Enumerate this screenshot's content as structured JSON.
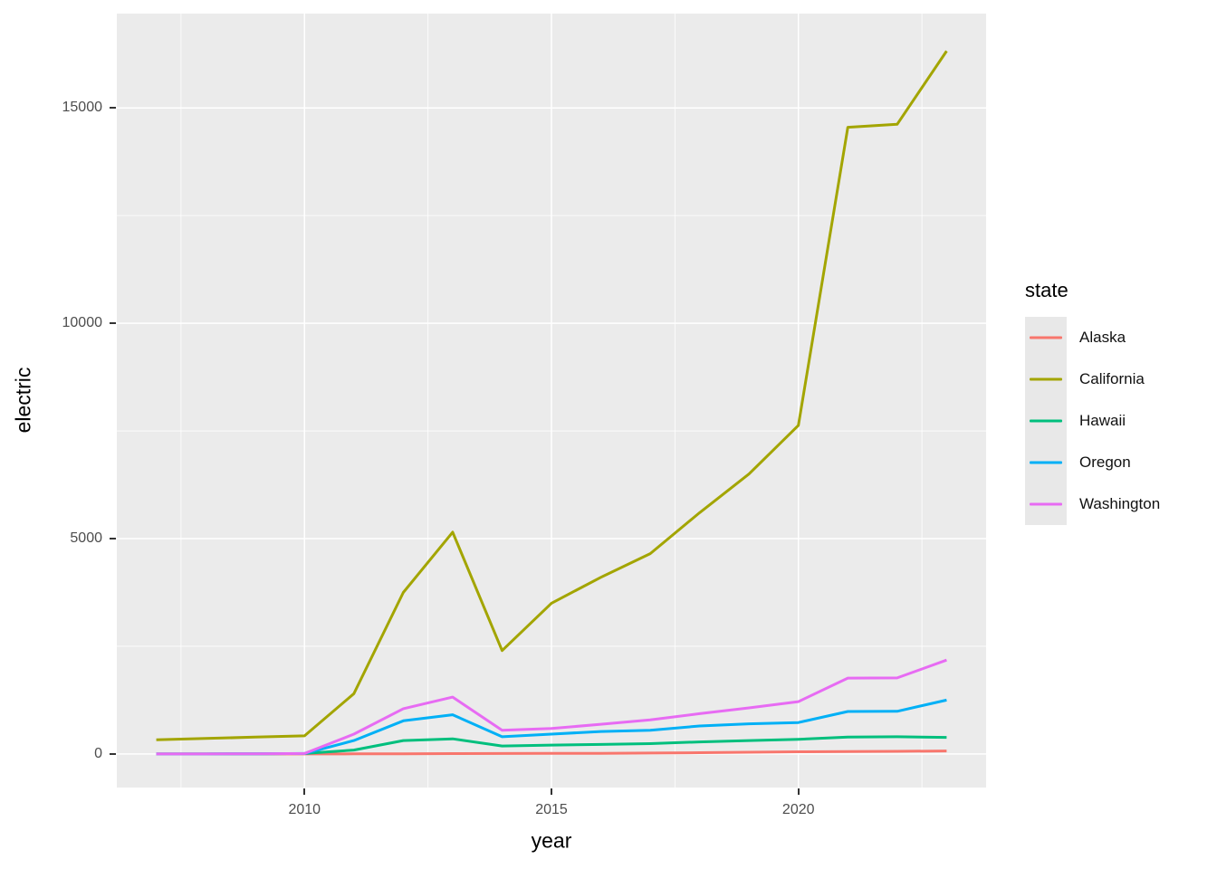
{
  "chart_data": {
    "type": "line",
    "title": "",
    "xlabel": "year",
    "ylabel": "electric",
    "legend_title": "state",
    "legend_position": "right",
    "panel_bg": "#EBEBEB",
    "grid_color": "#FFFFFF",
    "tick_color": "#333333",
    "tick_label_color": "#4D4D4D",
    "x": [
      2007,
      2008,
      2009,
      2010,
      2011,
      2012,
      2013,
      2014,
      2015,
      2016,
      2017,
      2018,
      2019,
      2020,
      2021,
      2022,
      2023
    ],
    "series": [
      {
        "name": "Alaska",
        "color": "#F8766D",
        "values": [
          0,
          0,
          0,
          0,
          2,
          5,
          8,
          10,
          12,
          15,
          20,
          30,
          40,
          50,
          55,
          60,
          70
        ]
      },
      {
        "name": "California",
        "color": "#A3A500",
        "values": [
          330,
          360,
          390,
          420,
          1400,
          3750,
          5150,
          2400,
          3500,
          4100,
          4650,
          5600,
          6500,
          7630,
          14550,
          14620,
          16320
        ]
      },
      {
        "name": "Hawaii",
        "color": "#00BF7D",
        "values": [
          0,
          0,
          5,
          10,
          90,
          310,
          350,
          185,
          205,
          220,
          240,
          280,
          310,
          340,
          390,
          400,
          385
        ]
      },
      {
        "name": "Oregon",
        "color": "#00B0F6",
        "values": [
          0,
          0,
          5,
          10,
          310,
          770,
          910,
          400,
          460,
          520,
          550,
          650,
          700,
          730,
          985,
          990,
          1250
        ]
      },
      {
        "name": "Washington",
        "color": "#E76BF3",
        "values": [
          0,
          0,
          5,
          10,
          460,
          1050,
          1320,
          550,
          590,
          690,
          790,
          935,
          1070,
          1215,
          1760,
          1765,
          2180
        ]
      }
    ],
    "x_ticks": [
      2010,
      2015,
      2020
    ],
    "x_ticks_labels": [
      "2010",
      "2015",
      "2020"
    ],
    "x_minor_ticks": [
      2007.5,
      2012.5,
      2017.5,
      2022.5
    ],
    "y_ticks": [
      0,
      5000,
      10000,
      15000
    ],
    "y_ticks_labels": [
      "0",
      "5000",
      "10000",
      "15000"
    ],
    "y_minor_ticks": [
      2500,
      7500,
      12500
    ],
    "x_range": [
      2006.2,
      2023.8
    ],
    "y_range": [
      -780,
      17190
    ],
    "grid": true
  }
}
